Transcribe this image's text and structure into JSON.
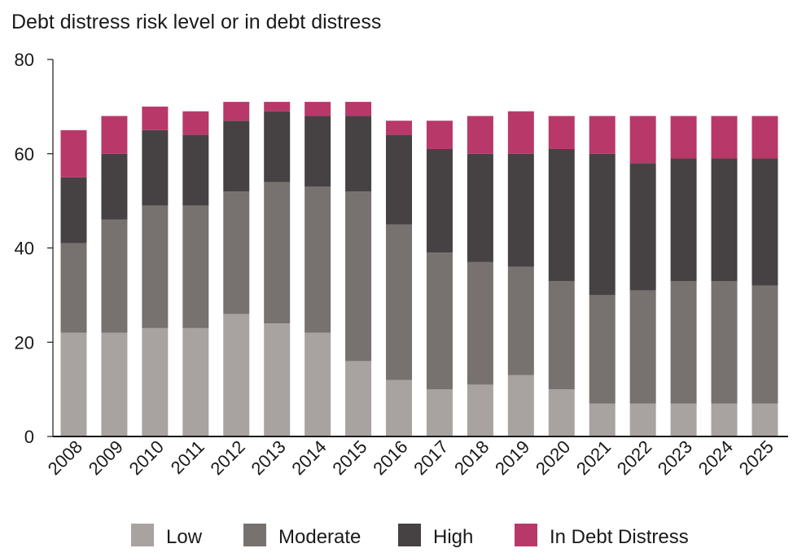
{
  "chart_data": {
    "type": "bar",
    "stacked": true,
    "title": "Debt distress risk level or in debt distress",
    "xlabel": "",
    "ylabel": "",
    "ylim": [
      0,
      80
    ],
    "yticks": [
      0,
      20,
      40,
      60,
      80
    ],
    "grid": false,
    "legend_position": "bottom",
    "categories": [
      "2008",
      "2009",
      "2010",
      "2011",
      "2012",
      "2013",
      "2014",
      "2015",
      "2016",
      "2017",
      "2018",
      "2019",
      "2020",
      "2021",
      "2022",
      "2023",
      "2024",
      "2025"
    ],
    "series": [
      {
        "name": "Low",
        "color": "#a8a3a1",
        "values": [
          22,
          22,
          23,
          23,
          26,
          24,
          22,
          16,
          12,
          10,
          11,
          13,
          10,
          7,
          7,
          7,
          7,
          7
        ]
      },
      {
        "name": "Moderate",
        "color": "#77716f",
        "values": [
          19,
          24,
          26,
          26,
          26,
          30,
          31,
          36,
          33,
          29,
          26,
          23,
          23,
          23,
          24,
          26,
          26,
          25
        ]
      },
      {
        "name": "High",
        "color": "#464244",
        "values": [
          14,
          14,
          16,
          15,
          15,
          15,
          15,
          16,
          19,
          22,
          23,
          24,
          28,
          30,
          27,
          26,
          26,
          27
        ]
      },
      {
        "name": "In Debt Distress",
        "color": "#b8386a",
        "values": [
          10,
          8,
          5,
          5,
          4,
          2,
          3,
          3,
          3,
          6,
          8,
          9,
          7,
          8,
          10,
          9,
          9,
          9
        ]
      }
    ]
  }
}
